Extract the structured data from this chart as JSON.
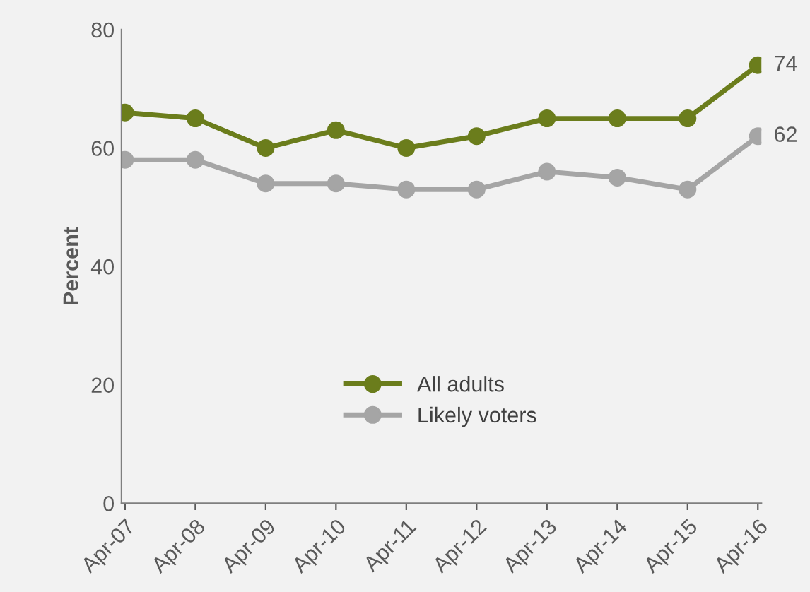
{
  "chart_data": {
    "type": "line",
    "ylabel": "Percent",
    "categories": [
      "Apr-07",
      "Apr-08",
      "Apr-09",
      "Apr-10",
      "Apr-11",
      "Apr-12",
      "Apr-13",
      "Apr-14",
      "Apr-15",
      "Apr-16"
    ],
    "series": [
      {
        "name": "All adults",
        "color": "#6b7d1c",
        "values": [
          66,
          65,
          60,
          63,
          60,
          62,
          65,
          65,
          65,
          74
        ],
        "value_labels": [
          null,
          null,
          null,
          null,
          null,
          null,
          null,
          null,
          null,
          "74"
        ]
      },
      {
        "name": "Likely voters",
        "color": "#a5a5a5",
        "values": [
          58,
          58,
          54,
          54,
          53,
          53,
          56,
          55,
          53,
          62
        ],
        "value_labels": [
          null,
          null,
          null,
          null,
          null,
          null,
          null,
          null,
          null,
          "62"
        ]
      }
    ],
    "ylim": [
      0,
      80
    ],
    "yticks": [
      0,
      20,
      40,
      60,
      80
    ],
    "grid": false,
    "legend": "bottom right",
    "marker": "circle",
    "line_style": "solid"
  }
}
